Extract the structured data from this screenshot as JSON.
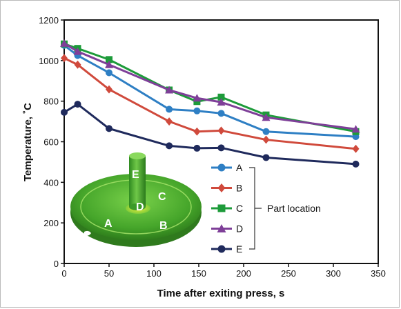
{
  "chart_data": {
    "type": "line",
    "title": "",
    "xlabel": "Time after exiting press, s",
    "ylabel": "Temperature, ˚C",
    "xlim": [
      0,
      350
    ],
    "ylim": [
      0,
      1200
    ],
    "xticks": [
      0,
      50,
      100,
      150,
      200,
      250,
      300,
      350
    ],
    "yticks": [
      0,
      200,
      400,
      600,
      800,
      1000,
      1200
    ],
    "grid": false,
    "legend_position": "right",
    "legend_group_label": "Part location",
    "series": [
      {
        "name": "A",
        "color": "#2e7fc4",
        "marker": "circle",
        "x": [
          0,
          15,
          50,
          117,
          148,
          175,
          225,
          325
        ],
        "y": [
          1075,
          1025,
          940,
          760,
          752,
          740,
          650,
          625
        ]
      },
      {
        "name": "B",
        "color": "#d04a3c",
        "marker": "diamond",
        "x": [
          0,
          15,
          50,
          117,
          148,
          175,
          225,
          325
        ],
        "y": [
          1012,
          980,
          858,
          700,
          650,
          655,
          610,
          565
        ]
      },
      {
        "name": "C",
        "color": "#1d9b3a",
        "marker": "square",
        "x": [
          0,
          15,
          50,
          117,
          148,
          175,
          225,
          325
        ],
        "y": [
          1082,
          1060,
          1005,
          855,
          798,
          820,
          732,
          650
        ]
      },
      {
        "name": "D",
        "color": "#7e3f98",
        "marker": "triangle",
        "x": [
          0,
          15,
          50,
          117,
          148,
          175,
          225,
          325
        ],
        "y": [
          1085,
          1045,
          980,
          855,
          815,
          795,
          720,
          662
        ]
      },
      {
        "name": "E",
        "color": "#1f2a5c",
        "marker": "circle",
        "x": [
          0,
          15,
          50,
          117,
          148,
          175,
          225,
          325
        ],
        "y": [
          745,
          785,
          665,
          580,
          568,
          570,
          522,
          490
        ]
      }
    ],
    "annotations": {
      "part_labels": [
        "E",
        "D",
        "C",
        "A",
        "B"
      ]
    }
  }
}
